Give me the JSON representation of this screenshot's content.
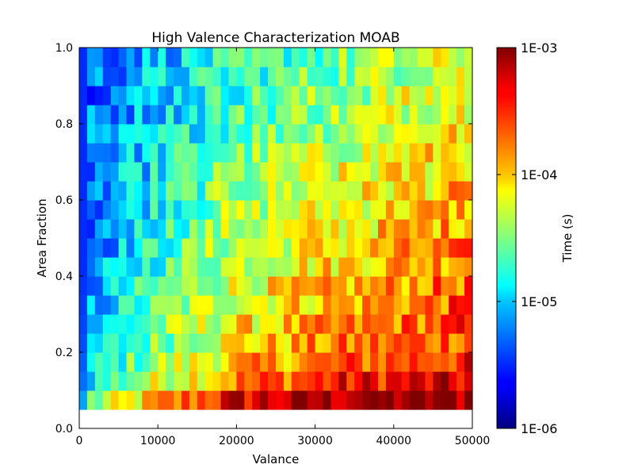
{
  "chart_data": {
    "type": "heatmap",
    "title": "High Valence Characterization MOAB",
    "xlabel": "Valance",
    "ylabel": "Area Fraction",
    "xlim": [
      0,
      50000
    ],
    "ylim": [
      0.0,
      1.0
    ],
    "xticks": [
      "0",
      "10000",
      "20000",
      "30000",
      "40000",
      "50000"
    ],
    "yticks": [
      "0.0",
      "0.2",
      "0.4",
      "0.6",
      "0.8",
      "1.0"
    ],
    "colorbar": {
      "label": "Time (s)",
      "scale": "log",
      "colormap": "jet",
      "range": [
        1e-06,
        0.001
      ],
      "ticks": [
        "1E-06",
        "1E-05",
        "1E-04",
        "1E-03"
      ]
    },
    "grid": {
      "x_start": 0,
      "x_step": 1000,
      "columns": 50,
      "y_start": 0.05,
      "y_step": 0.05,
      "rows": 19,
      "value_unit": "log10 seconds",
      "row_trend_log10": [
        [
          -5.7,
          -4.6,
          -3.9,
          -3.3,
          -3.05,
          -3.05
        ],
        [
          -5.7,
          -4.9,
          -4.25,
          -3.75,
          -3.4,
          -3.3
        ],
        [
          -5.7,
          -5.0,
          -4.4,
          -3.95,
          -3.65,
          -3.45
        ],
        [
          -5.7,
          -5.1,
          -4.5,
          -4.05,
          -3.75,
          -3.55
        ],
        [
          -5.7,
          -5.15,
          -4.55,
          -4.1,
          -3.8,
          -3.55
        ],
        [
          -5.7,
          -5.2,
          -4.6,
          -4.15,
          -3.85,
          -3.6
        ],
        [
          -5.7,
          -5.25,
          -4.65,
          -4.2,
          -3.9,
          -3.65
        ],
        [
          -5.7,
          -5.3,
          -4.7,
          -4.25,
          -3.95,
          -3.7
        ],
        [
          -5.7,
          -5.3,
          -4.75,
          -4.3,
          -4.0,
          -3.75
        ],
        [
          -5.7,
          -5.3,
          -4.75,
          -4.35,
          -4.05,
          -3.8
        ],
        [
          -5.7,
          -5.3,
          -4.8,
          -4.4,
          -4.1,
          -3.85
        ],
        [
          -5.7,
          -5.3,
          -4.85,
          -4.45,
          -4.15,
          -3.9
        ],
        [
          -5.7,
          -5.3,
          -4.9,
          -4.5,
          -4.2,
          -3.95
        ],
        [
          -5.7,
          -5.3,
          -4.9,
          -4.55,
          -4.25,
          -3.95
        ],
        [
          -5.7,
          -5.3,
          -4.95,
          -4.6,
          -4.3,
          -4.0
        ],
        [
          -5.7,
          -5.3,
          -5.0,
          -4.65,
          -4.35,
          -4.05
        ],
        [
          -5.7,
          -5.3,
          -5.0,
          -4.7,
          -4.4,
          -4.1
        ],
        [
          -5.7,
          -5.3,
          -5.0,
          -4.75,
          -4.45,
          -4.15
        ],
        [
          -5.7,
          -5.3,
          -5.05,
          -4.8,
          -4.5,
          -4.2
        ]
      ],
      "trend_x": [
        0,
        1000,
        10000,
        20000,
        35000,
        50000
      ],
      "noise_amplitude_log10": 0.35
    }
  }
}
